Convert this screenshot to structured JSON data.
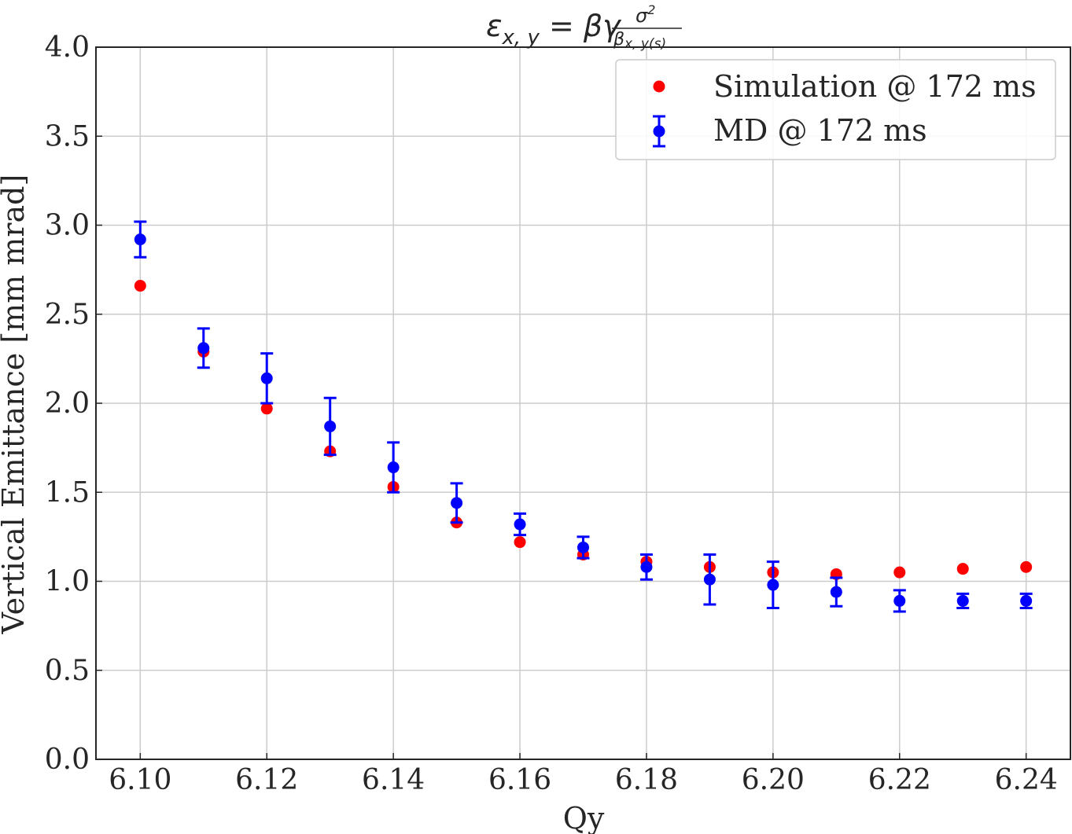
{
  "chart_data": {
    "type": "scatter",
    "title": {
      "lhs": "ε",
      "lhs_sub": "x, y",
      "eq": " = βγ",
      "numerator": "σ",
      "numerator_sup": "2",
      "denominator": "β",
      "denominator_sub": "x, y(s)"
    },
    "xlabel": "Qy",
    "ylabel": "Vertical Emittance [mm mrad]",
    "xlim": [
      6.093,
      6.247
    ],
    "ylim": [
      0.0,
      4.0
    ],
    "xticks": [
      "6.10",
      "6.12",
      "6.14",
      "6.16",
      "6.18",
      "6.20",
      "6.22",
      "6.24"
    ],
    "yticks": [
      "0.0",
      "0.5",
      "1.0",
      "1.5",
      "2.0",
      "2.5",
      "3.0",
      "3.5",
      "4.0"
    ],
    "grid": true,
    "legend_position": "top-right",
    "series": [
      {
        "name": "Simulation @ 172 ms",
        "color": "#ff0000",
        "marker": "circle",
        "x": [
          6.1,
          6.11,
          6.12,
          6.13,
          6.14,
          6.15,
          6.16,
          6.17,
          6.18,
          6.19,
          6.2,
          6.21,
          6.22,
          6.23,
          6.24
        ],
        "y": [
          2.66,
          2.29,
          1.97,
          1.73,
          1.53,
          1.33,
          1.22,
          1.15,
          1.11,
          1.08,
          1.05,
          1.04,
          1.05,
          1.07,
          1.08
        ]
      },
      {
        "name": "MD @ 172 ms",
        "color": "#0000ff",
        "marker": "circle",
        "errorbars": true,
        "x": [
          6.1,
          6.11,
          6.12,
          6.13,
          6.14,
          6.15,
          6.16,
          6.17,
          6.18,
          6.19,
          6.2,
          6.21,
          6.22,
          6.23,
          6.24
        ],
        "y": [
          2.92,
          2.31,
          2.14,
          1.87,
          1.64,
          1.44,
          1.32,
          1.19,
          1.08,
          1.01,
          0.98,
          0.94,
          0.89,
          0.89,
          0.89
        ],
        "yerr": [
          0.1,
          0.11,
          0.14,
          0.16,
          0.14,
          0.11,
          0.06,
          0.06,
          0.07,
          0.14,
          0.13,
          0.08,
          0.06,
          0.04,
          0.04
        ]
      }
    ]
  }
}
